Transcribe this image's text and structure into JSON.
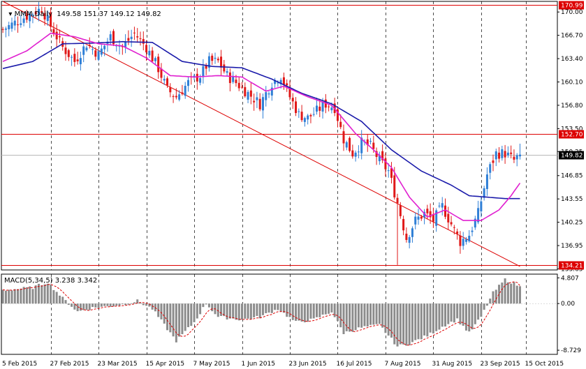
{
  "header": {
    "symbol_label": "MMM,Daily",
    "ohlc_text": "149.58 151.37 149.12 149.82",
    "macd_label": "MACD(5,34,5) 3.238 3.342"
  },
  "colors": {
    "background": "#ffffff",
    "bull_candle": "#2f7fd6",
    "bear_candle": "#e01818",
    "ma_fast": "#e020d0",
    "ma_slow": "#1a1aaa",
    "level_line": "#dd0000",
    "histogram": "#8c8c8c",
    "signal_line": "#dd0000",
    "grid": "#000000",
    "current_price_tag": "#000000"
  },
  "chart_data": {
    "type": "candlestick",
    "timeframe": "Daily",
    "symbol": "MMM",
    "x_tick_labels": [
      "5 Feb 2015",
      "27 Feb 2015",
      "23 Mar 2015",
      "15 Apr 2015",
      "7 May 2015",
      "1 Jun 2015",
      "23 Jun 2015",
      "16 Jul 2015",
      "7 Aug 2015",
      "31 Aug 2015",
      "23 Sep 2015",
      "15 Oct 2015"
    ],
    "y_tick_labels": [
      "170.00",
      "166.70",
      "163.40",
      "160.10",
      "156.80",
      "153.50",
      "150.25",
      "146.85",
      "143.55",
      "140.25",
      "136.95",
      "133.65"
    ],
    "ylim": [
      133.5,
      171.5
    ],
    "horizontal_levels": [
      {
        "value": 170.99,
        "label": "170.99"
      },
      {
        "value": 152.7,
        "label": "152.70"
      },
      {
        "value": 134.21,
        "label": "134.21"
      }
    ],
    "current_price": {
      "value": 149.82,
      "label": "149.82"
    },
    "trendline": {
      "from": {
        "bar": 0,
        "price": 171.5
      },
      "to": {
        "bar": 173,
        "price": 134.0
      }
    },
    "close_anchors": [
      [
        0,
        167.5
      ],
      [
        6,
        169.0
      ],
      [
        13,
        170.5
      ],
      [
        16,
        168.0
      ],
      [
        20,
        165.0
      ],
      [
        24,
        163.0
      ],
      [
        28,
        165.5
      ],
      [
        32,
        164.0
      ],
      [
        36,
        166.5
      ],
      [
        40,
        165.0
      ],
      [
        44,
        167.0
      ],
      [
        48,
        165.0
      ],
      [
        52,
        162.0
      ],
      [
        55,
        159.0
      ],
      [
        58,
        158.0
      ],
      [
        62,
        160.0
      ],
      [
        64,
        160.5
      ],
      [
        66,
        161.0
      ],
      [
        69,
        163.0
      ],
      [
        72,
        163.0
      ],
      [
        75,
        161.0
      ],
      [
        78,
        160.0
      ],
      [
        82,
        158.5
      ],
      [
        86,
        157.0
      ],
      [
        90,
        160.0
      ],
      [
        93,
        161.0
      ],
      [
        96,
        158.0
      ],
      [
        99,
        155.5
      ],
      [
        102,
        155.0
      ],
      [
        105,
        156.0
      ],
      [
        108,
        157.0
      ],
      [
        111,
        156.5
      ],
      [
        114,
        152.0
      ],
      [
        117,
        150.0
      ],
      [
        120,
        151.5
      ],
      [
        123,
        151.0
      ],
      [
        126,
        149.0
      ],
      [
        129,
        147.5
      ],
      [
        132,
        143.0
      ],
      [
        135,
        138.0
      ],
      [
        138,
        140.5
      ],
      [
        141,
        141.5
      ],
      [
        144,
        140.5
      ],
      [
        147,
        142.5
      ],
      [
        150,
        140.0
      ],
      [
        153,
        137.5
      ],
      [
        156,
        138.5
      ],
      [
        159,
        141.5
      ],
      [
        162,
        147.0
      ],
      [
        165,
        150.0
      ],
      [
        168,
        150.0
      ],
      [
        171,
        149.0
      ],
      [
        173,
        149.82
      ]
    ],
    "ma_fast_anchors": [
      [
        0,
        163.0
      ],
      [
        8,
        164.5
      ],
      [
        16,
        167.0
      ],
      [
        24,
        166.5
      ],
      [
        32,
        165.5
      ],
      [
        40,
        165.2
      ],
      [
        48,
        163.5
      ],
      [
        56,
        161.0
      ],
      [
        64,
        160.8
      ],
      [
        72,
        161.0
      ],
      [
        80,
        160.8
      ],
      [
        88,
        158.8
      ],
      [
        94,
        159.5
      ],
      [
        102,
        158.0
      ],
      [
        110,
        156.8
      ],
      [
        118,
        152.8
      ],
      [
        124,
        150.5
      ],
      [
        130,
        148.0
      ],
      [
        136,
        143.8
      ],
      [
        142,
        141.0
      ],
      [
        148,
        142.0
      ],
      [
        154,
        140.5
      ],
      [
        160,
        140.5
      ],
      [
        166,
        142.0
      ],
      [
        170,
        144.0
      ],
      [
        173,
        145.8
      ]
    ],
    "ma_slow_anchors": [
      [
        0,
        162.0
      ],
      [
        10,
        163.0
      ],
      [
        20,
        165.5
      ],
      [
        30,
        165.6
      ],
      [
        40,
        165.8
      ],
      [
        50,
        165.7
      ],
      [
        60,
        163.0
      ],
      [
        70,
        162.3
      ],
      [
        80,
        162.1
      ],
      [
        90,
        160.5
      ],
      [
        100,
        158.5
      ],
      [
        110,
        157.0
      ],
      [
        120,
        154.5
      ],
      [
        130,
        150.5
      ],
      [
        140,
        147.5
      ],
      [
        150,
        145.5
      ],
      [
        156,
        144.0
      ],
      [
        162,
        143.8
      ],
      [
        168,
        143.6
      ],
      [
        173,
        143.6
      ]
    ],
    "macd": {
      "name": "MACD(5,34,5)",
      "value": 3.238,
      "signal": 3.342,
      "y_tick_labels": [
        "4.807",
        "0.00",
        "-8.729"
      ],
      "ylim": [
        -9.5,
        5.5
      ],
      "hist_anchors": [
        [
          0,
          2.5
        ],
        [
          10,
          3.0
        ],
        [
          15,
          4.0
        ],
        [
          20,
          1.0
        ],
        [
          25,
          -1.5
        ],
        [
          30,
          -0.8
        ],
        [
          40,
          -0.2
        ],
        [
          45,
          0.5
        ],
        [
          50,
          -1.0
        ],
        [
          58,
          -7.0
        ],
        [
          64,
          -3.5
        ],
        [
          68,
          0.0
        ],
        [
          72,
          -2.5
        ],
        [
          80,
          -3.0
        ],
        [
          86,
          -2.5
        ],
        [
          92,
          -1.0
        ],
        [
          98,
          -3.5
        ],
        [
          104,
          -3.0
        ],
        [
          110,
          -1.5
        ],
        [
          114,
          -5.5
        ],
        [
          120,
          -4.5
        ],
        [
          126,
          -4.0
        ],
        [
          132,
          -8.0
        ],
        [
          136,
          -7.5
        ],
        [
          142,
          -6.0
        ],
        [
          148,
          -4.0
        ],
        [
          152,
          -3.0
        ],
        [
          156,
          -5.5
        ],
        [
          160,
          -2.5
        ],
        [
          164,
          2.0
        ],
        [
          168,
          4.5
        ],
        [
          173,
          3.238
        ]
      ]
    }
  }
}
